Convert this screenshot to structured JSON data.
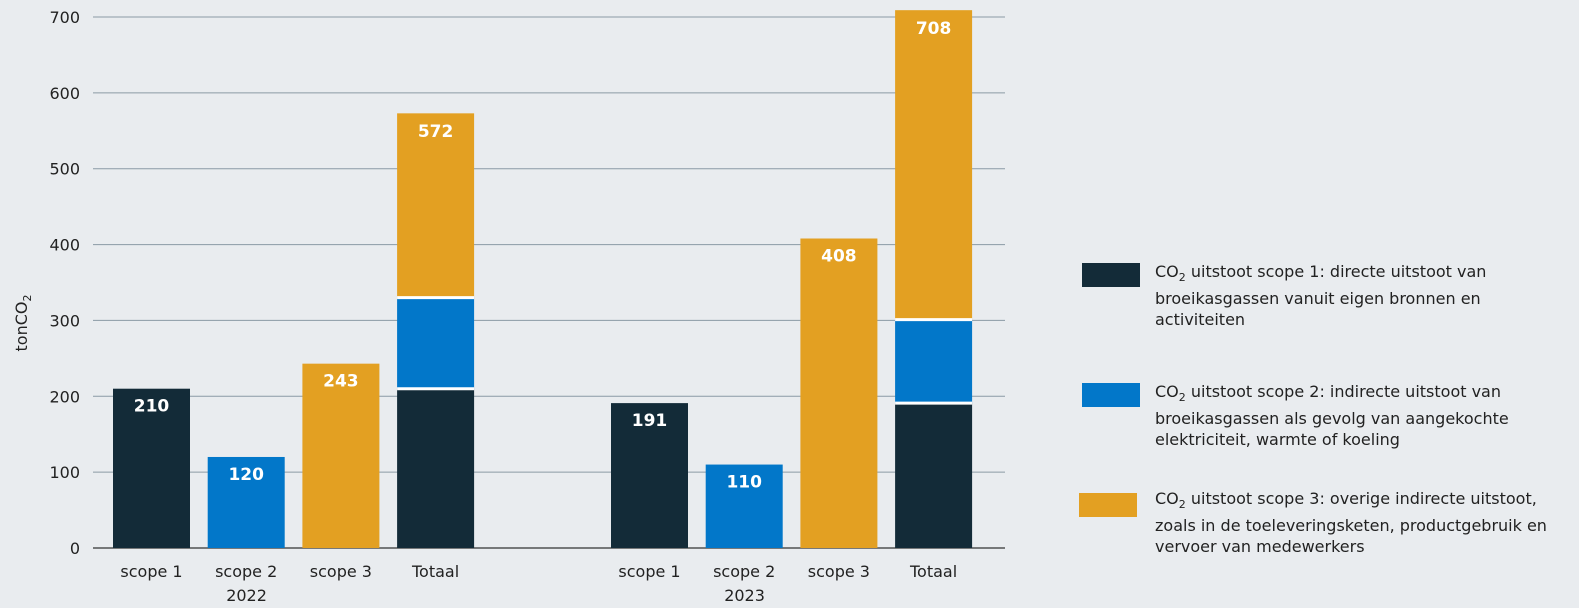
{
  "chart_data": {
    "type": "bar",
    "stacked_total": true,
    "ylabel": "tonCO",
    "ylabel_subscript": "2",
    "ylim": [
      0,
      700
    ],
    "yticks": [
      0,
      100,
      200,
      300,
      400,
      500,
      600,
      700
    ],
    "grid": true,
    "legend_position": "right",
    "groups": [
      {
        "label": "2022",
        "bars": [
          {
            "label": "scope 1",
            "value": 210,
            "series": "scope1"
          },
          {
            "label": "scope 2",
            "value": 120,
            "series": "scope2"
          },
          {
            "label": "scope 3",
            "value": 243,
            "series": "scope3"
          },
          {
            "label": "Totaal",
            "value": 572,
            "stack": [
              210,
              120,
              243
            ]
          }
        ]
      },
      {
        "label": "2023",
        "bars": [
          {
            "label": "scope 1",
            "value": 191,
            "series": "scope1"
          },
          {
            "label": "scope 2",
            "value": 110,
            "series": "scope2"
          },
          {
            "label": "scope 3",
            "value": 408,
            "series": "scope3"
          },
          {
            "label": "Totaal",
            "value": 708,
            "stack": [
              191,
              110,
              408
            ]
          }
        ]
      }
    ],
    "series": [
      {
        "key": "scope1",
        "color": "#132b38",
        "name_prefix": "CO",
        "name_sub": "2",
        "name_rest": " uitstoot scope 1: directe uitstoot van broeikasgassen vanuit eigen bronnen en activiteiten"
      },
      {
        "key": "scope2",
        "color": "#0277c9",
        "name_prefix": "CO",
        "name_sub": "2",
        "name_rest": " uitstoot scope 2: indirecte uitstoot van broeikasgassen als gevolg van aangekochte elektriciteit, warmte of koeling"
      },
      {
        "key": "scope3",
        "color": "#e3a022",
        "name_prefix": "CO",
        "name_sub": "2",
        "name_rest": " uitstoot scope 3: overige indirecte uitstoot, zoals in de toeleveringsketen, productgebruik en vervoer van medewerkers"
      }
    ]
  }
}
